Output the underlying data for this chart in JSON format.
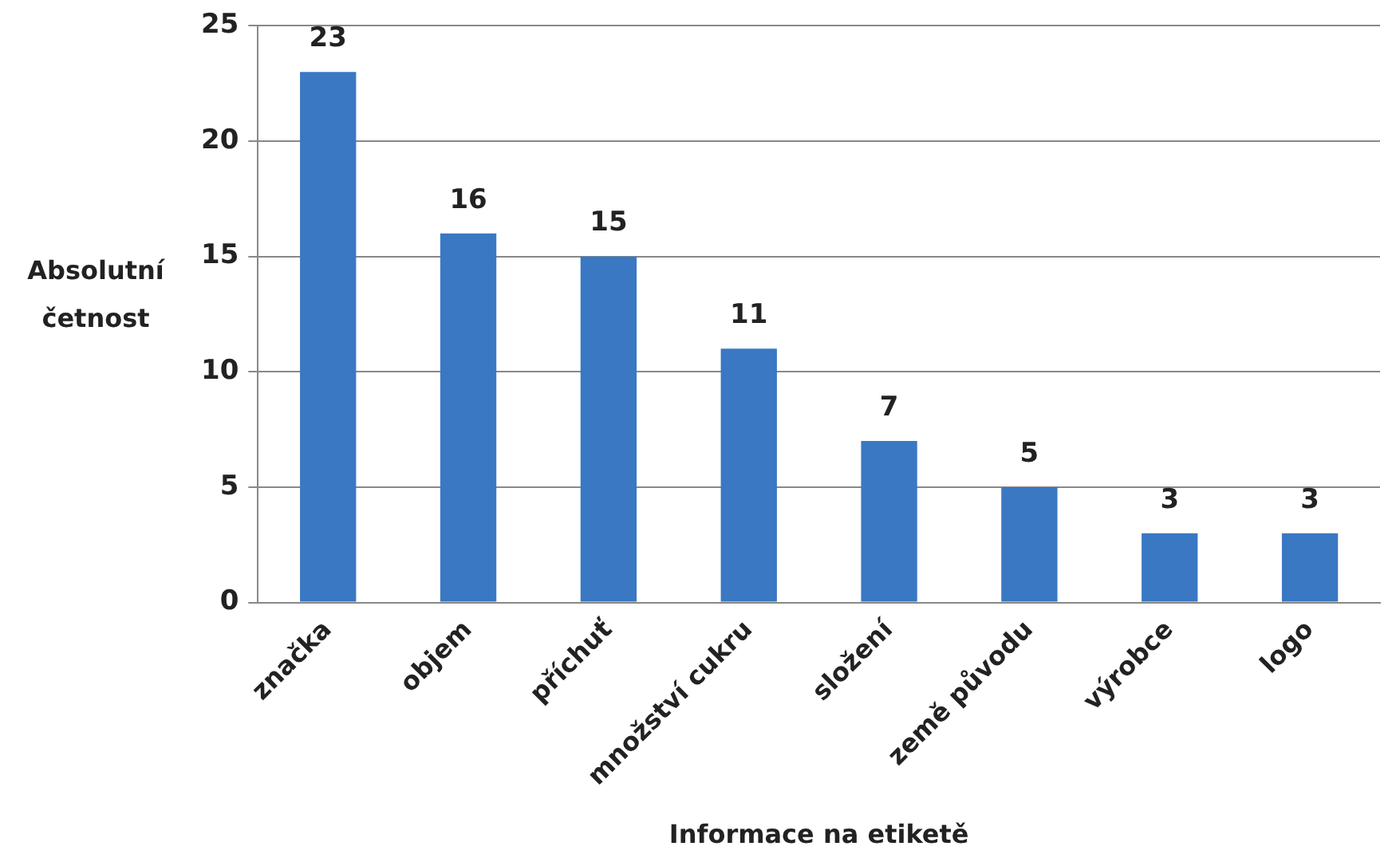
{
  "chart_data": {
    "type": "bar",
    "xlabel": "Informace na etiketě",
    "ylabel": "Absolutní četnost",
    "categories": [
      "značka",
      "objem",
      "příchuť",
      "množství cukru",
      "složení",
      "země původu",
      "výrobce",
      "logo"
    ],
    "values": [
      23,
      16,
      15,
      11,
      7,
      5,
      3,
      3
    ],
    "color": "#3a78c3",
    "ylim": [
      0,
      25
    ],
    "yticks": [
      0,
      5,
      10,
      15,
      20,
      25
    ],
    "grid": "y",
    "data_labels": true,
    "legend": false
  }
}
